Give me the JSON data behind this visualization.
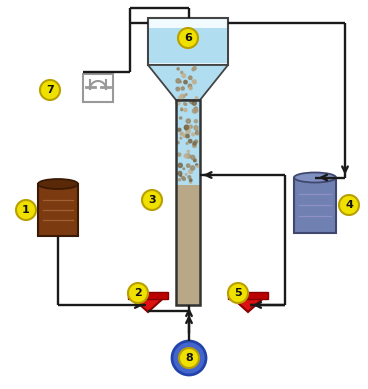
{
  "bg_color": "#ffffff",
  "label_bg": "#f0e000",
  "label_border": "#b8a000",
  "line_color": "#1a1a1a",
  "pump_color": "#dd1111",
  "tank1_color": "#7b3a10",
  "tank1_dark": "#5a2a08",
  "tank4_color": "#7080b0",
  "tank4_light": "#8090c0",
  "tank8_color": "#4466cc",
  "tank8_dark": "#2244aa",
  "reactor_water_color": "#b0ddf0",
  "reactor_sand_color": "#b8a888",
  "reactor_sand_dark": "#9a8868",
  "settle_bg": "#f0faff",
  "settle_water": "#b0ddf0",
  "meter_color": "#999999",
  "figsize": [
    3.68,
    3.89
  ],
  "dpi": 100
}
